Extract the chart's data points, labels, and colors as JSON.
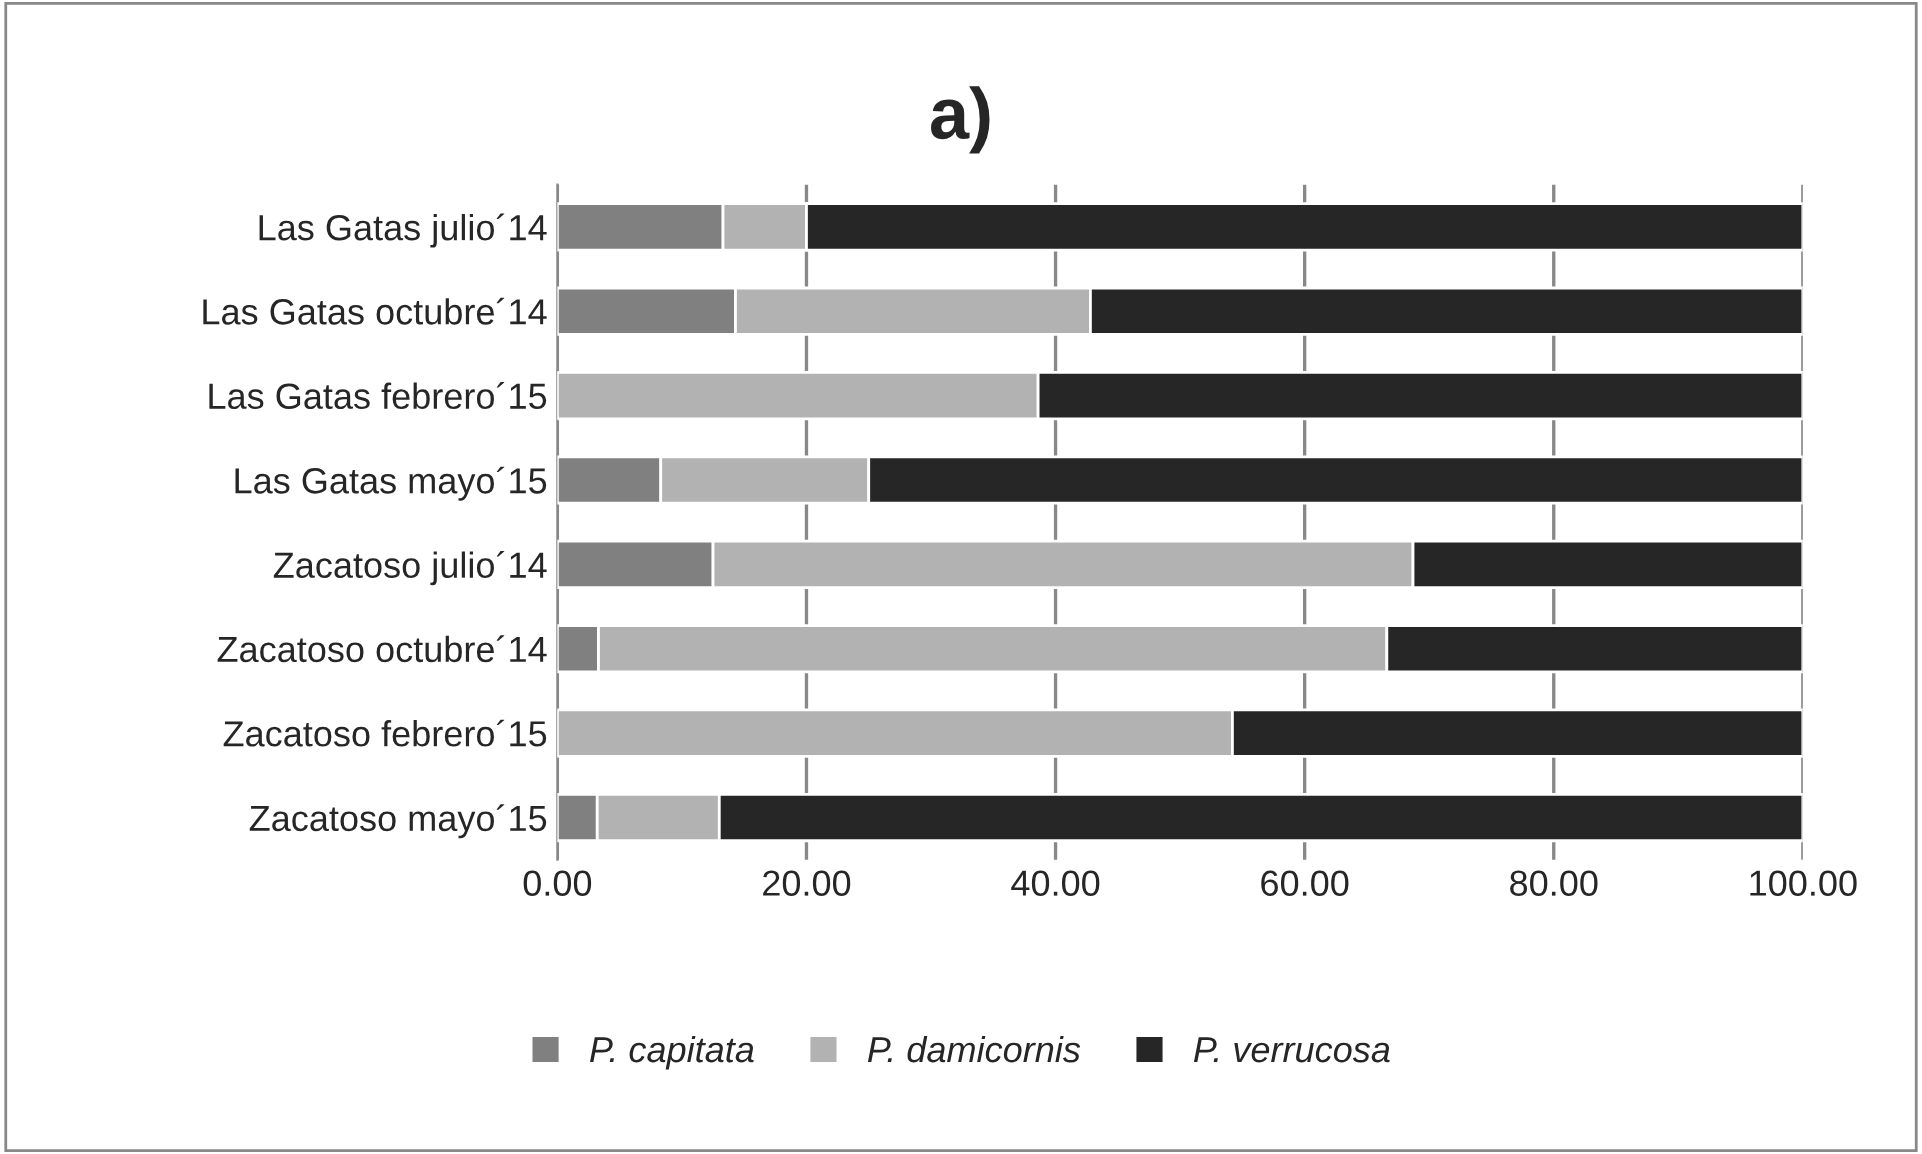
{
  "chart_data": {
    "type": "bar",
    "orientation": "horizontal",
    "stacked": true,
    "title": "a)",
    "categories": [
      "Las Gatas julio´14",
      "Las Gatas octubre´14",
      "Las Gatas febrero´15",
      "Las Gatas mayo´15",
      "Zacatoso julio´14",
      "Zacatoso octubre´14",
      "Zacatoso febrero´15",
      "Zacatoso mayo´15"
    ],
    "series": [
      {
        "name": "P. capitata",
        "color": "#808080",
        "values": [
          13.3,
          14.3,
          0,
          8.3,
          12.5,
          3.3,
          0,
          3.2
        ]
      },
      {
        "name": "P. damicornis",
        "color": "#b2b2b2",
        "values": [
          6.7,
          28.5,
          38.6,
          16.7,
          56.2,
          63.3,
          54.2,
          9.8
        ]
      },
      {
        "name": "P. verrucosa",
        "color": "#262626",
        "values": [
          80.0,
          57.2,
          61.4,
          75.0,
          31.3,
          33.4,
          45.8,
          87.0
        ]
      }
    ],
    "xlim": [
      0,
      100
    ],
    "xticks": [
      {
        "value": 0,
        "label": "0.00"
      },
      {
        "value": 20,
        "label": "20.00"
      },
      {
        "value": 40,
        "label": "40.00"
      },
      {
        "value": 60,
        "label": "60.00"
      },
      {
        "value": 80,
        "label": "80.00"
      },
      {
        "value": 100,
        "label": "100.00"
      }
    ],
    "grid": "x",
    "legend": "bottom"
  }
}
